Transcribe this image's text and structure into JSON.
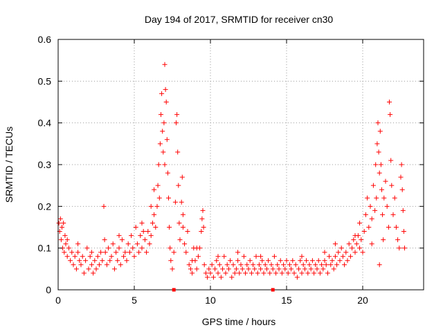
{
  "chart_data": {
    "type": "scatter",
    "title": "Day 194 of 2017, SRMTID for receiver cn30",
    "xlabel": "GPS time / hours",
    "ylabel": "SRMTID / TECUs",
    "xlim": [
      0,
      24
    ],
    "ylim": [
      0,
      0.6
    ],
    "xticks": [
      "0",
      "5",
      "10",
      "15",
      "20"
    ],
    "yticks": [
      "0",
      "0.1",
      "0.2",
      "0.3",
      "0.4",
      "0.5",
      "0.6"
    ],
    "grid": true,
    "marker": "+",
    "series_color": "#ff0000",
    "axis_markers_x": [
      7.6,
      14.1
    ],
    "series": [
      {
        "name": "SRMTID",
        "points": [
          [
            0.05,
            0.16
          ],
          [
            0.1,
            0.14
          ],
          [
            0.15,
            0.17
          ],
          [
            0.2,
            0.12
          ],
          [
            0.25,
            0.15
          ],
          [
            0.3,
            0.1
          ],
          [
            0.35,
            0.16
          ],
          [
            0.4,
            0.09
          ],
          [
            0.45,
            0.13
          ],
          [
            0.5,
            0.11
          ],
          [
            0.6,
            0.08
          ],
          [
            0.7,
            0.1
          ],
          [
            0.8,
            0.07
          ],
          [
            0.9,
            0.09
          ],
          [
            1.0,
            0.06
          ],
          [
            1.1,
            0.08
          ],
          [
            1.2,
            0.05
          ],
          [
            1.3,
            0.09
          ],
          [
            1.4,
            0.07
          ],
          [
            1.5,
            0.06
          ],
          [
            1.6,
            0.08
          ],
          [
            1.7,
            0.04
          ],
          [
            1.8,
            0.07
          ],
          [
            1.9,
            0.1
          ],
          [
            2.0,
            0.05
          ],
          [
            2.1,
            0.08
          ],
          [
            2.2,
            0.06
          ],
          [
            2.3,
            0.04
          ],
          [
            2.4,
            0.07
          ],
          [
            2.5,
            0.05
          ],
          [
            2.6,
            0.08
          ],
          [
            2.7,
            0.06
          ],
          [
            2.8,
            0.09
          ],
          [
            2.9,
            0.07
          ],
          [
            3.0,
            0.2
          ],
          [
            3.05,
            0.12
          ],
          [
            3.1,
            0.09
          ],
          [
            3.2,
            0.06
          ],
          [
            3.3,
            0.1
          ],
          [
            3.4,
            0.07
          ],
          [
            3.5,
            0.08
          ],
          [
            3.6,
            0.11
          ],
          [
            3.7,
            0.05
          ],
          [
            3.8,
            0.09
          ],
          [
            3.9,
            0.07
          ],
          [
            4.0,
            0.1
          ],
          [
            4.1,
            0.06
          ],
          [
            4.2,
            0.12
          ],
          [
            4.3,
            0.08
          ],
          [
            4.4,
            0.09
          ],
          [
            4.5,
            0.07
          ],
          [
            4.6,
            0.11
          ],
          [
            4.7,
            0.09
          ],
          [
            4.8,
            0.13
          ],
          [
            4.9,
            0.1
          ],
          [
            5.0,
            0.08
          ],
          [
            5.1,
            0.15
          ],
          [
            5.2,
            0.11
          ],
          [
            5.3,
            0.09
          ],
          [
            5.4,
            0.13
          ],
          [
            5.5,
            0.1
          ],
          [
            5.6,
            0.14
          ],
          [
            5.7,
            0.12
          ],
          [
            5.8,
            0.09
          ],
          [
            5.9,
            0.14
          ],
          [
            6.0,
            0.11
          ],
          [
            6.1,
            0.13
          ],
          [
            6.2,
            0.16
          ],
          [
            6.3,
            0.18
          ],
          [
            6.4,
            0.15
          ],
          [
            6.5,
            0.2
          ],
          [
            6.55,
            0.25
          ],
          [
            6.6,
            0.3
          ],
          [
            6.65,
            0.22
          ],
          [
            6.7,
            0.35
          ],
          [
            6.75,
            0.42
          ],
          [
            6.8,
            0.47
          ],
          [
            6.85,
            0.38
          ],
          [
            6.9,
            0.33
          ],
          [
            6.95,
            0.4
          ],
          [
            7.0,
            0.3
          ],
          [
            7.0,
            0.54
          ],
          [
            7.05,
            0.48
          ],
          [
            7.1,
            0.45
          ],
          [
            7.15,
            0.36
          ],
          [
            7.2,
            0.28
          ],
          [
            7.25,
            0.22
          ],
          [
            7.3,
            0.15
          ],
          [
            7.35,
            0.1
          ],
          [
            7.4,
            0.07
          ],
          [
            7.5,
            0.05
          ],
          [
            7.6,
            0.09
          ],
          [
            7.7,
            0.21
          ],
          [
            7.75,
            0.4
          ],
          [
            7.8,
            0.42
          ],
          [
            7.85,
            0.33
          ],
          [
            7.9,
            0.25
          ],
          [
            7.95,
            0.16
          ],
          [
            8.0,
            0.12
          ],
          [
            8.1,
            0.21
          ],
          [
            8.15,
            0.27
          ],
          [
            8.2,
            0.18
          ],
          [
            8.3,
            0.11
          ],
          [
            8.4,
            0.09
          ],
          [
            8.5,
            0.14
          ],
          [
            8.6,
            0.06
          ],
          [
            8.7,
            0.05
          ],
          [
            8.8,
            0.04
          ],
          [
            8.9,
            0.1
          ],
          [
            9.0,
            0.07
          ],
          [
            9.1,
            0.05
          ],
          [
            9.2,
            0.08
          ],
          [
            9.3,
            0.1
          ],
          [
            9.4,
            0.14
          ],
          [
            9.45,
            0.17
          ],
          [
            9.5,
            0.19
          ],
          [
            9.55,
            0.15
          ],
          [
            9.6,
            0.06
          ],
          [
            9.7,
            0.04
          ],
          [
            9.8,
            0.03
          ],
          [
            9.9,
            0.05
          ],
          [
            10.0,
            0.04
          ],
          [
            10.1,
            0.06
          ],
          [
            10.2,
            0.03
          ],
          [
            10.3,
            0.05
          ],
          [
            10.4,
            0.07
          ],
          [
            10.5,
            0.04
          ],
          [
            10.6,
            0.06
          ],
          [
            10.7,
            0.03
          ],
          [
            10.8,
            0.05
          ],
          [
            10.9,
            0.08
          ],
          [
            11.0,
            0.04
          ],
          [
            11.1,
            0.06
          ],
          [
            11.2,
            0.05
          ],
          [
            11.3,
            0.07
          ],
          [
            11.4,
            0.03
          ],
          [
            11.5,
            0.06
          ],
          [
            11.6,
            0.04
          ],
          [
            11.7,
            0.05
          ],
          [
            11.8,
            0.07
          ],
          [
            11.9,
            0.04
          ],
          [
            12.0,
            0.06
          ],
          [
            12.1,
            0.05
          ],
          [
            12.2,
            0.08
          ],
          [
            12.3,
            0.04
          ],
          [
            12.4,
            0.06
          ],
          [
            12.5,
            0.05
          ],
          [
            12.6,
            0.07
          ],
          [
            12.7,
            0.04
          ],
          [
            12.8,
            0.06
          ],
          [
            12.9,
            0.05
          ],
          [
            13.0,
            0.08
          ],
          [
            13.1,
            0.04
          ],
          [
            13.2,
            0.06
          ],
          [
            13.3,
            0.05
          ],
          [
            13.4,
            0.07
          ],
          [
            13.5,
            0.04
          ],
          [
            13.6,
            0.06
          ],
          [
            13.7,
            0.05
          ],
          [
            13.8,
            0.07
          ],
          [
            13.9,
            0.04
          ],
          [
            14.0,
            0.06
          ],
          [
            14.1,
            0.05
          ],
          [
            14.2,
            0.08
          ],
          [
            14.3,
            0.04
          ],
          [
            14.4,
            0.06
          ],
          [
            14.5,
            0.05
          ],
          [
            14.6,
            0.07
          ],
          [
            14.7,
            0.04
          ],
          [
            14.8,
            0.06
          ],
          [
            14.9,
            0.05
          ],
          [
            15.0,
            0.07
          ],
          [
            15.1,
            0.04
          ],
          [
            15.2,
            0.06
          ],
          [
            15.3,
            0.05
          ],
          [
            15.4,
            0.07
          ],
          [
            15.5,
            0.04
          ],
          [
            15.6,
            0.06
          ],
          [
            15.7,
            0.03
          ],
          [
            15.8,
            0.05
          ],
          [
            15.9,
            0.07
          ],
          [
            16.0,
            0.04
          ],
          [
            16.1,
            0.06
          ],
          [
            16.2,
            0.05
          ],
          [
            16.3,
            0.07
          ],
          [
            16.4,
            0.04
          ],
          [
            16.5,
            0.06
          ],
          [
            16.6,
            0.05
          ],
          [
            16.7,
            0.07
          ],
          [
            16.8,
            0.04
          ],
          [
            16.9,
            0.06
          ],
          [
            17.0,
            0.05
          ],
          [
            17.1,
            0.07
          ],
          [
            17.2,
            0.04
          ],
          [
            17.3,
            0.06
          ],
          [
            17.4,
            0.05
          ],
          [
            17.5,
            0.07
          ],
          [
            17.6,
            0.06
          ],
          [
            17.7,
            0.04
          ],
          [
            17.8,
            0.08
          ],
          [
            17.9,
            0.06
          ],
          [
            18.0,
            0.07
          ],
          [
            18.1,
            0.05
          ],
          [
            18.2,
            0.08
          ],
          [
            18.3,
            0.06
          ],
          [
            18.4,
            0.09
          ],
          [
            18.5,
            0.07
          ],
          [
            18.6,
            0.1
          ],
          [
            18.7,
            0.08
          ],
          [
            18.8,
            0.06
          ],
          [
            18.9,
            0.09
          ],
          [
            19.0,
            0.07
          ],
          [
            19.1,
            0.11
          ],
          [
            19.2,
            0.08
          ],
          [
            19.3,
            0.1
          ],
          [
            19.4,
            0.12
          ],
          [
            19.5,
            0.09
          ],
          [
            19.6,
            0.11
          ],
          [
            19.7,
            0.13
          ],
          [
            19.8,
            0.1
          ],
          [
            19.9,
            0.12
          ],
          [
            20.0,
            0.09
          ],
          [
            20.1,
            0.14
          ],
          [
            20.2,
            0.18
          ],
          [
            20.3,
            0.22
          ],
          [
            20.4,
            0.15
          ],
          [
            20.5,
            0.2
          ],
          [
            20.6,
            0.17
          ],
          [
            20.7,
            0.25
          ],
          [
            20.8,
            0.19
          ],
          [
            20.85,
            0.3
          ],
          [
            20.9,
            0.22
          ],
          [
            20.95,
            0.35
          ],
          [
            21.0,
            0.4
          ],
          [
            21.05,
            0.33
          ],
          [
            21.1,
            0.28
          ],
          [
            21.15,
            0.38
          ],
          [
            21.2,
            0.3
          ],
          [
            21.25,
            0.24
          ],
          [
            21.3,
            0.18
          ],
          [
            21.35,
            0.12
          ],
          [
            21.4,
            0.22
          ],
          [
            21.5,
            0.26
          ],
          [
            21.6,
            0.2
          ],
          [
            21.7,
            0.15
          ],
          [
            21.75,
            0.45
          ],
          [
            21.8,
            0.42
          ],
          [
            21.85,
            0.31
          ],
          [
            21.9,
            0.25
          ],
          [
            22.0,
            0.18
          ],
          [
            22.1,
            0.22
          ],
          [
            22.2,
            0.15
          ],
          [
            22.3,
            0.12
          ],
          [
            22.4,
            0.1
          ],
          [
            22.5,
            0.27
          ],
          [
            22.55,
            0.3
          ],
          [
            22.6,
            0.24
          ],
          [
            22.65,
            0.19
          ],
          [
            22.7,
            0.14
          ],
          [
            22.75,
            0.1
          ],
          [
            21.1,
            0.06
          ],
          [
            20.6,
            0.11
          ],
          [
            19.5,
            0.13
          ],
          [
            2.2,
            0.09
          ],
          [
            1.3,
            0.11
          ],
          [
            0.6,
            0.12
          ],
          [
            4.0,
            0.13
          ],
          [
            5.5,
            0.16
          ],
          [
            6.1,
            0.2
          ],
          [
            6.3,
            0.24
          ],
          [
            8.2,
            0.15
          ],
          [
            8.8,
            0.07
          ],
          [
            9.1,
            0.1
          ],
          [
            10.5,
            0.08
          ],
          [
            11.8,
            0.09
          ],
          [
            13.3,
            0.08
          ],
          [
            16.0,
            0.08
          ],
          [
            17.5,
            0.09
          ],
          [
            18.2,
            0.11
          ],
          [
            19.8,
            0.16
          ]
        ]
      }
    ]
  }
}
